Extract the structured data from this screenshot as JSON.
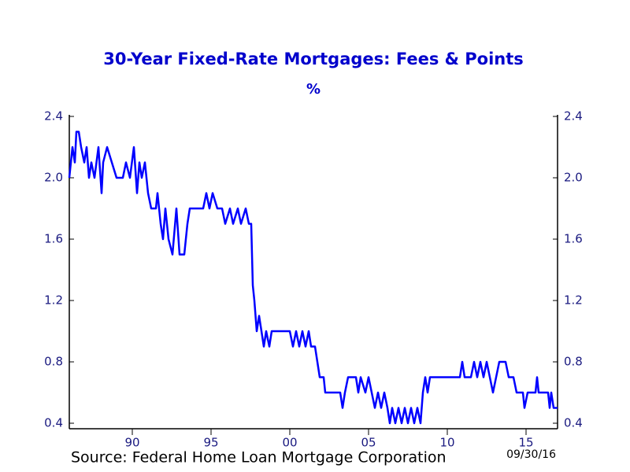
{
  "chart_data": {
    "type": "line",
    "title": "30-Year Fixed-Rate Mortgages: Fees & Points",
    "subtitle": "%",
    "source": "Source:  Federal Home Loan Mortgage Corporation",
    "date_note": "09/30/16",
    "color": "#0000ff",
    "x": [
      1986.0,
      1986.2,
      1986.35,
      1986.45,
      1986.6,
      1986.75,
      1986.95,
      1987.1,
      1987.25,
      1987.4,
      1987.6,
      1987.85,
      1988.05,
      1988.15,
      1988.4,
      1988.7,
      1989.0,
      1989.4,
      1989.6,
      1989.85,
      1990.1,
      1990.3,
      1990.45,
      1990.6,
      1990.8,
      1991.0,
      1991.2,
      1991.5,
      1991.6,
      1991.8,
      1991.95,
      1992.1,
      1992.3,
      1992.55,
      1992.8,
      1993.0,
      1993.3,
      1993.5,
      1993.65,
      1994.5,
      1994.7,
      1994.9,
      1995.1,
      1995.4,
      1995.7,
      1995.9,
      1996.2,
      1996.4,
      1996.7,
      1996.9,
      1997.2,
      1997.4,
      1997.55,
      1997.65,
      1997.75,
      1997.9,
      1998.05,
      1998.2,
      1998.35,
      1998.5,
      1998.7,
      1998.85,
      2000.0,
      2000.2,
      2000.4,
      2000.6,
      2000.8,
      2001.0,
      2001.2,
      2001.35,
      2001.6,
      2001.75,
      2001.9,
      2002.15,
      2002.25,
      2003.2,
      2003.35,
      2003.5,
      2003.7,
      2004.2,
      2004.35,
      2004.5,
      2004.8,
      2005.0,
      2005.2,
      2005.4,
      2005.6,
      2005.8,
      2006.0,
      2006.2,
      2006.35,
      2006.5,
      2006.7,
      2006.9,
      2007.1,
      2007.3,
      2007.5,
      2007.7,
      2007.9,
      2008.1,
      2008.3,
      2008.45,
      2008.6,
      2008.75,
      2008.9,
      2009.1,
      2010.8,
      2010.95,
      2011.1,
      2011.5,
      2011.7,
      2011.9,
      2012.1,
      2012.3,
      2012.5,
      2012.7,
      2012.9,
      2013.1,
      2013.3,
      2013.7,
      2013.9,
      2014.2,
      2014.4,
      2014.8,
      2014.9,
      2015.1,
      2015.6,
      2015.7,
      2015.8,
      2016.4,
      2016.5,
      2016.6,
      2016.75,
      2017.0
    ],
    "values": [
      2.0,
      2.2,
      2.1,
      2.3,
      2.3,
      2.2,
      2.1,
      2.2,
      2.0,
      2.1,
      2.0,
      2.2,
      1.9,
      2.1,
      2.2,
      2.1,
      2.0,
      2.0,
      2.1,
      2.0,
      2.2,
      1.9,
      2.1,
      2.0,
      2.1,
      1.9,
      1.8,
      1.8,
      1.9,
      1.7,
      1.6,
      1.8,
      1.6,
      1.5,
      1.8,
      1.5,
      1.5,
      1.7,
      1.8,
      1.8,
      1.9,
      1.8,
      1.9,
      1.8,
      1.8,
      1.7,
      1.8,
      1.7,
      1.8,
      1.7,
      1.8,
      1.7,
      1.7,
      1.3,
      1.2,
      1.0,
      1.1,
      1.0,
      0.9,
      1.0,
      0.9,
      1.0,
      1.0,
      0.9,
      1.0,
      0.9,
      1.0,
      0.9,
      1.0,
      0.9,
      0.9,
      0.8,
      0.7,
      0.7,
      0.6,
      0.6,
      0.5,
      0.6,
      0.7,
      0.7,
      0.6,
      0.7,
      0.6,
      0.7,
      0.6,
      0.5,
      0.6,
      0.5,
      0.6,
      0.5,
      0.4,
      0.5,
      0.4,
      0.5,
      0.4,
      0.5,
      0.4,
      0.5,
      0.4,
      0.5,
      0.4,
      0.6,
      0.7,
      0.6,
      0.7,
      0.7,
      0.7,
      0.8,
      0.7,
      0.7,
      0.8,
      0.7,
      0.8,
      0.7,
      0.8,
      0.7,
      0.6,
      0.7,
      0.8,
      0.8,
      0.7,
      0.7,
      0.6,
      0.6,
      0.5,
      0.6,
      0.6,
      0.7,
      0.6,
      0.6,
      0.5,
      0.6,
      0.5,
      0.5
    ],
    "xlim": [
      1986,
      2017
    ],
    "xticks": [
      {
        "value": 1990,
        "label": "90"
      },
      {
        "value": 1995,
        "label": "95"
      },
      {
        "value": 2000,
        "label": "00"
      },
      {
        "value": 2005,
        "label": "05"
      },
      {
        "value": 2010,
        "label": "10"
      },
      {
        "value": 2015,
        "label": "15"
      }
    ],
    "ylim": [
      0.4,
      2.4
    ],
    "yticks": [
      0.4,
      0.8,
      1.2,
      1.6,
      {
        "value": 2,
        "label": "2.0"
      },
      2.4
    ]
  }
}
